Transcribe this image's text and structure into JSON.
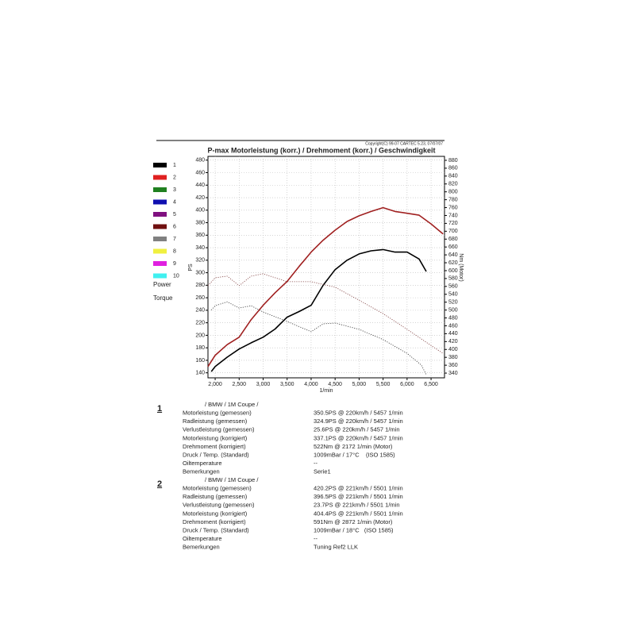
{
  "copyright": "Copyright(C) 99-07 CARTEC 5.23, 07/07/07",
  "chart_data": {
    "type": "line",
    "title": "P-max Motorleistung (korr.) / Drehmoment (korr.) / Geschwindigkeit",
    "xlabel": "1/min",
    "ylabel": "PS",
    "y2label": "Nm (Motor)",
    "xlim": [
      1850,
      6780
    ],
    "ylim": [
      132,
      486
    ],
    "y2lim": [
      328,
      890
    ],
    "grid": true,
    "xticks": [
      {
        "value": 2000,
        "label": "2,000"
      },
      {
        "value": 2500,
        "label": "2,500"
      },
      {
        "value": 3000,
        "label": "3,000"
      },
      {
        "value": 3500,
        "label": "3,500"
      },
      {
        "value": 4000,
        "label": "4,000"
      },
      {
        "value": 4500,
        "label": "4,500"
      },
      {
        "value": 5000,
        "label": "5,000"
      },
      {
        "value": 5500,
        "label": "5,500"
      },
      {
        "value": 6000,
        "label": "6,000"
      },
      {
        "value": 6500,
        "label": "6,500"
      }
    ],
    "yticks": [
      140,
      160,
      180,
      200,
      220,
      240,
      260,
      280,
      300,
      320,
      340,
      360,
      380,
      400,
      420,
      440,
      460,
      480
    ],
    "y2ticks": [
      340,
      360,
      380,
      400,
      420,
      440,
      460,
      480,
      500,
      520,
      540,
      560,
      580,
      600,
      620,
      640,
      660,
      680,
      700,
      720,
      740,
      760,
      780,
      800,
      820,
      840,
      860,
      880
    ],
    "legend": [
      {
        "name": "1",
        "color": "#000000"
      },
      {
        "name": "2",
        "color": "#e02020"
      },
      {
        "name": "3",
        "color": "#208020"
      },
      {
        "name": "4",
        "color": "#1010b0"
      },
      {
        "name": "5",
        "color": "#801080"
      },
      {
        "name": "6",
        "color": "#701010"
      },
      {
        "name": "7",
        "color": "#808080"
      },
      {
        "name": "8",
        "color": "#f0f040"
      },
      {
        "name": "9",
        "color": "#e020e0"
      },
      {
        "name": "10",
        "color": "#40f0f0"
      }
    ],
    "line_styles": [
      "Power",
      "Torque"
    ],
    "series": [
      {
        "color": "#000000",
        "style": "solid",
        "axis": "y",
        "x": [
          1920,
          2000,
          2250,
          2500,
          2750,
          3000,
          3250,
          3500,
          3750,
          4000,
          4250,
          4500,
          4750,
          5000,
          5250,
          5500,
          5750,
          6000,
          6250,
          6400
        ],
        "values": [
          142,
          150,
          165,
          178,
          188,
          197,
          210,
          229,
          238,
          248,
          280,
          305,
          320,
          330,
          335,
          337,
          333,
          333,
          322,
          302
        ]
      },
      {
        "color": "#a02020",
        "style": "solid",
        "axis": "y",
        "x": [
          1850,
          2000,
          2250,
          2500,
          2750,
          3000,
          3250,
          3500,
          3750,
          4000,
          4250,
          4500,
          4750,
          5000,
          5250,
          5500,
          5750,
          6000,
          6250,
          6500,
          6750
        ],
        "values": [
          150,
          168,
          185,
          197,
          225,
          248,
          268,
          286,
          310,
          333,
          352,
          368,
          382,
          391,
          398,
          404,
          398,
          395,
          392,
          378,
          362
        ]
      },
      {
        "color": "#333333",
        "style": "dotted",
        "axis": "y2",
        "x": [
          1920,
          2000,
          2250,
          2500,
          2750,
          3000,
          3500,
          4000,
          4250,
          4500,
          5000,
          5500,
          6000,
          6300,
          6400
        ],
        "values": [
          500,
          511,
          521,
          505,
          511,
          495,
          471,
          445,
          465,
          467,
          451,
          425,
          390,
          360,
          336
        ]
      },
      {
        "color": "#804040",
        "style": "dotted",
        "axis": "y2",
        "x": [
          1850,
          2000,
          2250,
          2500,
          2750,
          3000,
          3500,
          4000,
          4500,
          5000,
          5500,
          6000,
          6500,
          6750
        ],
        "values": [
          562,
          582,
          586,
          562,
          586,
          592,
          572,
          572,
          558,
          525,
          491,
          451,
          410,
          390
        ]
      }
    ]
  },
  "runs": [
    {
      "number": "1",
      "vehicle": "/ BMW / 1M Coupe /",
      "rows": [
        [
          "Motorleistung (gemessen)",
          "350.5PS @ 220km/h / 5457 1/min"
        ],
        [
          "Radleistung (gemessen)",
          "324.9PS @ 220km/h / 5457 1/min"
        ],
        [
          "Verlustleistung (gemessen)",
          "25.6PS @ 220km/h / 5457 1/min"
        ],
        [
          "Motorleistung (korrigiert)",
          "337.1PS @ 220km/h / 5457 1/min"
        ],
        [
          "Drehmoment (korrigiert)",
          "522Nm @ 2172 1/min (Motor)"
        ],
        [
          "Druck / Temp. (Standard)",
          "1009mBar / 17°C    (ISO 1585)"
        ],
        [
          "Oiltemperature",
          "--"
        ],
        [
          "Bemerkungen",
          "Serie1"
        ]
      ]
    },
    {
      "number": "2",
      "vehicle": "/ BMW / 1M Coupe /",
      "rows": [
        [
          "Motorleistung (gemessen)",
          "420.2PS @ 221km/h / 5501 1/min"
        ],
        [
          "Radleistung (gemessen)",
          "396.5PS @ 221km/h / 5501 1/min"
        ],
        [
          "Verlustleistung (gemessen)",
          "23.7PS @ 221km/h / 5501 1/min"
        ],
        [
          "Motorleistung (korrigiert)",
          "404.4PS @ 221km/h / 5501 1/min"
        ],
        [
          "Drehmoment (korrigiert)",
          "591Nm @ 2872 1/min (Motor)"
        ],
        [
          "Druck / Temp. (Standard)",
          "1009mBar / 18°C   (ISO 1585)"
        ],
        [
          "Oiltemperature",
          "--"
        ],
        [
          "Bemerkungen",
          "Tuning Ref2 LLK"
        ]
      ]
    }
  ]
}
